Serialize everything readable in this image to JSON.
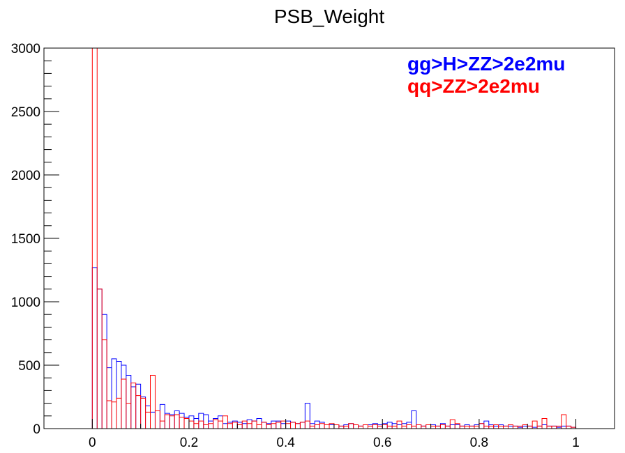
{
  "chart_data": {
    "type": "histogram",
    "title": "PSB_Weight",
    "xlabel": "",
    "ylabel": "",
    "xlim": [
      -0.1,
      1.08
    ],
    "ylim": [
      0,
      3000
    ],
    "grid": false,
    "legend_placement": "top-right",
    "x_ticks": [
      {
        "value": 0,
        "label": "0"
      },
      {
        "value": 0.2,
        "label": "0.2"
      },
      {
        "value": 0.4,
        "label": "0.4"
      },
      {
        "value": 0.6,
        "label": "0.6"
      },
      {
        "value": 0.8,
        "label": "0.8"
      },
      {
        "value": 1,
        "label": "1"
      }
    ],
    "y_ticks": [
      {
        "value": 0,
        "label": "0"
      },
      {
        "value": 500,
        "label": "500"
      },
      {
        "value": 1000,
        "label": "1000"
      },
      {
        "value": 1500,
        "label": "1500"
      },
      {
        "value": 2000,
        "label": "2000"
      },
      {
        "value": 2500,
        "label": "2500"
      },
      {
        "value": 3000,
        "label": "3000"
      }
    ],
    "bin_width": 0.01,
    "bin_start": -0.1,
    "series": [
      {
        "name": "gg>H>ZZ>2e2mu",
        "color": "#0000ff",
        "points": [
          [
            0.0,
            1270
          ],
          [
            0.01,
            1100
          ],
          [
            0.02,
            900
          ],
          [
            0.03,
            480
          ],
          [
            0.04,
            550
          ],
          [
            0.05,
            530
          ],
          [
            0.06,
            500
          ],
          [
            0.07,
            420
          ],
          [
            0.08,
            330
          ],
          [
            0.09,
            350
          ],
          [
            0.1,
            250
          ],
          [
            0.11,
            180
          ],
          [
            0.12,
            130
          ],
          [
            0.13,
            140
          ],
          [
            0.14,
            190
          ],
          [
            0.15,
            120
          ],
          [
            0.16,
            110
          ],
          [
            0.17,
            140
          ],
          [
            0.18,
            120
          ],
          [
            0.19,
            90
          ],
          [
            0.2,
            100
          ],
          [
            0.21,
            80
          ],
          [
            0.22,
            120
          ],
          [
            0.23,
            110
          ],
          [
            0.24,
            60
          ],
          [
            0.25,
            80
          ],
          [
            0.26,
            100
          ],
          [
            0.27,
            40
          ],
          [
            0.28,
            50
          ],
          [
            0.29,
            60
          ],
          [
            0.3,
            50
          ],
          [
            0.31,
            40
          ],
          [
            0.32,
            70
          ],
          [
            0.33,
            60
          ],
          [
            0.34,
            80
          ],
          [
            0.35,
            50
          ],
          [
            0.36,
            40
          ],
          [
            0.37,
            60
          ],
          [
            0.38,
            60
          ],
          [
            0.39,
            40
          ],
          [
            0.4,
            60
          ],
          [
            0.41,
            50
          ],
          [
            0.42,
            40
          ],
          [
            0.43,
            50
          ],
          [
            0.44,
            200
          ],
          [
            0.45,
            40
          ],
          [
            0.46,
            60
          ],
          [
            0.47,
            50
          ],
          [
            0.48,
            30
          ],
          [
            0.49,
            30
          ],
          [
            0.5,
            30
          ],
          [
            0.51,
            20
          ],
          [
            0.52,
            30
          ],
          [
            0.53,
            40
          ],
          [
            0.54,
            30
          ],
          [
            0.55,
            20
          ],
          [
            0.56,
            30
          ],
          [
            0.57,
            30
          ],
          [
            0.58,
            40
          ],
          [
            0.59,
            30
          ],
          [
            0.6,
            40
          ],
          [
            0.61,
            50
          ],
          [
            0.62,
            40
          ],
          [
            0.63,
            30
          ],
          [
            0.64,
            40
          ],
          [
            0.65,
            50
          ],
          [
            0.66,
            140
          ],
          [
            0.67,
            30
          ],
          [
            0.68,
            20
          ],
          [
            0.69,
            30
          ],
          [
            0.7,
            30
          ],
          [
            0.71,
            20
          ],
          [
            0.72,
            40
          ],
          [
            0.73,
            20
          ],
          [
            0.74,
            30
          ],
          [
            0.75,
            30
          ],
          [
            0.76,
            20
          ],
          [
            0.77,
            30
          ],
          [
            0.78,
            20
          ],
          [
            0.79,
            30
          ],
          [
            0.8,
            40
          ],
          [
            0.81,
            60
          ],
          [
            0.82,
            30
          ],
          [
            0.83,
            20
          ],
          [
            0.84,
            30
          ],
          [
            0.85,
            20
          ],
          [
            0.86,
            20
          ],
          [
            0.87,
            20
          ],
          [
            0.88,
            10
          ],
          [
            0.89,
            20
          ],
          [
            0.9,
            20
          ],
          [
            0.91,
            10
          ],
          [
            0.92,
            20
          ],
          [
            0.93,
            30
          ],
          [
            0.94,
            20
          ],
          [
            0.95,
            20
          ],
          [
            0.96,
            10
          ],
          [
            0.97,
            20
          ],
          [
            0.98,
            20
          ],
          [
            0.99,
            10
          ]
        ]
      },
      {
        "name": "qq>ZZ>2e2mu",
        "color": "#ff0000",
        "points": [
          [
            0.0,
            3000
          ],
          [
            0.01,
            1100
          ],
          [
            0.02,
            700
          ],
          [
            0.03,
            220
          ],
          [
            0.04,
            210
          ],
          [
            0.05,
            240
          ],
          [
            0.06,
            390
          ],
          [
            0.07,
            200
          ],
          [
            0.08,
            360
          ],
          [
            0.09,
            260
          ],
          [
            0.1,
            240
          ],
          [
            0.11,
            130
          ],
          [
            0.12,
            420
          ],
          [
            0.13,
            140
          ],
          [
            0.14,
            60
          ],
          [
            0.15,
            110
          ],
          [
            0.16,
            100
          ],
          [
            0.17,
            110
          ],
          [
            0.18,
            90
          ],
          [
            0.19,
            80
          ],
          [
            0.2,
            60
          ],
          [
            0.21,
            40
          ],
          [
            0.22,
            60
          ],
          [
            0.23,
            30
          ],
          [
            0.24,
            40
          ],
          [
            0.25,
            70
          ],
          [
            0.26,
            60
          ],
          [
            0.27,
            100
          ],
          [
            0.28,
            40
          ],
          [
            0.29,
            50
          ],
          [
            0.3,
            30
          ],
          [
            0.31,
            60
          ],
          [
            0.32,
            40
          ],
          [
            0.33,
            60
          ],
          [
            0.34,
            30
          ],
          [
            0.35,
            50
          ],
          [
            0.36,
            30
          ],
          [
            0.37,
            40
          ],
          [
            0.38,
            50
          ],
          [
            0.39,
            60
          ],
          [
            0.4,
            40
          ],
          [
            0.41,
            50
          ],
          [
            0.42,
            40
          ],
          [
            0.43,
            50
          ],
          [
            0.44,
            60
          ],
          [
            0.45,
            20
          ],
          [
            0.46,
            30
          ],
          [
            0.47,
            40
          ],
          [
            0.48,
            30
          ],
          [
            0.49,
            40
          ],
          [
            0.5,
            30
          ],
          [
            0.51,
            20
          ],
          [
            0.52,
            20
          ],
          [
            0.53,
            40
          ],
          [
            0.54,
            30
          ],
          [
            0.55,
            20
          ],
          [
            0.56,
            30
          ],
          [
            0.57,
            20
          ],
          [
            0.58,
            30
          ],
          [
            0.59,
            20
          ],
          [
            0.6,
            30
          ],
          [
            0.61,
            20
          ],
          [
            0.62,
            20
          ],
          [
            0.63,
            60
          ],
          [
            0.64,
            20
          ],
          [
            0.65,
            30
          ],
          [
            0.66,
            20
          ],
          [
            0.67,
            30
          ],
          [
            0.68,
            20
          ],
          [
            0.69,
            30
          ],
          [
            0.7,
            20
          ],
          [
            0.71,
            20
          ],
          [
            0.72,
            30
          ],
          [
            0.73,
            20
          ],
          [
            0.74,
            70
          ],
          [
            0.75,
            40
          ],
          [
            0.76,
            20
          ],
          [
            0.77,
            20
          ],
          [
            0.78,
            20
          ],
          [
            0.79,
            20
          ],
          [
            0.8,
            40
          ],
          [
            0.81,
            20
          ],
          [
            0.82,
            20
          ],
          [
            0.83,
            30
          ],
          [
            0.84,
            20
          ],
          [
            0.85,
            20
          ],
          [
            0.86,
            30
          ],
          [
            0.87,
            20
          ],
          [
            0.88,
            20
          ],
          [
            0.89,
            30
          ],
          [
            0.9,
            20
          ],
          [
            0.91,
            60
          ],
          [
            0.92,
            20
          ],
          [
            0.93,
            80
          ],
          [
            0.94,
            20
          ],
          [
            0.95,
            20
          ],
          [
            0.96,
            20
          ],
          [
            0.97,
            110
          ],
          [
            0.98,
            20
          ],
          [
            0.99,
            10
          ]
        ]
      }
    ]
  }
}
